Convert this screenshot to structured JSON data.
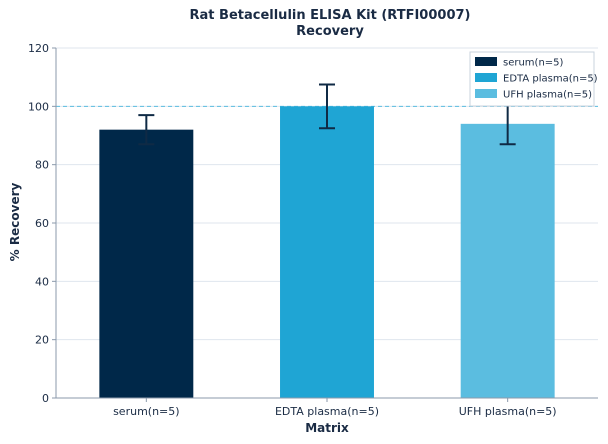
{
  "chart_data": {
    "type": "bar",
    "title": "Rat Betacellulin ELISA Kit (RTFI00007)",
    "subtitle": "Recovery",
    "xlabel": "Matrix",
    "ylabel": "% Recovery",
    "ylim": [
      0,
      120
    ],
    "yticks": [
      0,
      20,
      40,
      60,
      80,
      100,
      120
    ],
    "reference_line": 100,
    "grid": true,
    "legend_position": "top-right",
    "categories": [
      "serum(n=5)",
      "EDTA plasma(n=5)",
      "UFH plasma(n=5)"
    ],
    "values": [
      92,
      100,
      94
    ],
    "error": [
      5,
      7.5,
      7
    ],
    "colors": [
      "#002849",
      "#1fa5d4",
      "#5bbde0"
    ],
    "legend": [
      "serum(n=5)",
      "EDTA plasma(n=5)",
      "UFH plasma(n=5)"
    ],
    "reference_color": "#5bbde0"
  }
}
